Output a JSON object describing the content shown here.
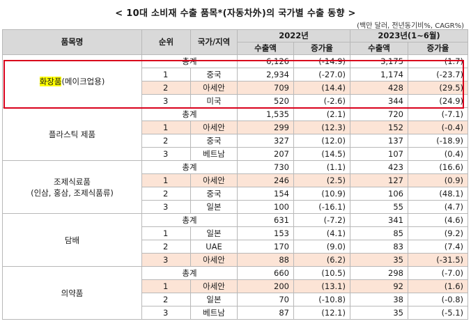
{
  "title": "< 10대 소비재 수출 품목*(자동차外)의 국가별 수출 동향 >",
  "unit": "(백만 달러, 전년동기비%, CAGR%)",
  "header": {
    "item": "품목명",
    "rank": "순위",
    "country": "국가/지역",
    "y2022": "2022년",
    "y2023": "2023년(1~6월)",
    "export": "수출액",
    "growth": "증가율"
  },
  "highlight_color": "#fce4d6",
  "box_color": "#d9001b",
  "groups": [
    {
      "name_main": "화장품",
      "name_sub": "(메이크업용)",
      "total": {
        "label": "총계",
        "e22": "6,126",
        "g22": "(-14.9)",
        "e23": "3,175",
        "g23": "(1.7)"
      },
      "rows": [
        {
          "rank": "1",
          "country": "중국",
          "e22": "2,934",
          "g22": "(-27.0)",
          "e23": "1,174",
          "g23": "(-23.7)",
          "hl": false
        },
        {
          "rank": "2",
          "country": "아세안",
          "e22": "709",
          "g22": "(14.4)",
          "e23": "428",
          "g23": "(29.5)",
          "hl": true
        },
        {
          "rank": "3",
          "country": "미국",
          "e22": "520",
          "g22": "(-2.6)",
          "e23": "344",
          "g23": "(24.9)",
          "hl": false
        }
      ]
    },
    {
      "name_main": "플라스틱 제품",
      "name_sub": "",
      "total": {
        "label": "총계",
        "e22": "1,535",
        "g22": "(2.1)",
        "e23": "720",
        "g23": "(-7.1)"
      },
      "rows": [
        {
          "rank": "1",
          "country": "아세안",
          "e22": "299",
          "g22": "(12.3)",
          "e23": "152",
          "g23": "(-0.4)",
          "hl": true
        },
        {
          "rank": "2",
          "country": "중국",
          "e22": "327",
          "g22": "(12.0)",
          "e23": "137",
          "g23": "(-18.9)",
          "hl": false
        },
        {
          "rank": "3",
          "country": "베트남",
          "e22": "207",
          "g22": "(14.5)",
          "e23": "107",
          "g23": "(0.4)",
          "hl": false
        }
      ]
    },
    {
      "name_main": "조제식료품",
      "name_sub": "(인삼, 홍삼, 조제식품류)",
      "total": {
        "label": "총계",
        "e22": "730",
        "g22": "(1.1)",
        "e23": "423",
        "g23": "(16.6)"
      },
      "rows": [
        {
          "rank": "1",
          "country": "아세안",
          "e22": "246",
          "g22": "(2.5)",
          "e23": "127",
          "g23": "(0.9)",
          "hl": true
        },
        {
          "rank": "2",
          "country": "중국",
          "e22": "154",
          "g22": "(10.9)",
          "e23": "106",
          "g23": "(48.1)",
          "hl": false
        },
        {
          "rank": "3",
          "country": "일본",
          "e22": "100",
          "g22": "(-16.1)",
          "e23": "55",
          "g23": "(4.7)",
          "hl": false
        }
      ]
    },
    {
      "name_main": "담배",
      "name_sub": "",
      "total": {
        "label": "총계",
        "e22": "631",
        "g22": "(-7.2)",
        "e23": "341",
        "g23": "(4.6)"
      },
      "rows": [
        {
          "rank": "1",
          "country": "일본",
          "e22": "153",
          "g22": "(4.1)",
          "e23": "85",
          "g23": "(9.2)",
          "hl": false
        },
        {
          "rank": "2",
          "country": "UAE",
          "e22": "170",
          "g22": "(9.0)",
          "e23": "83",
          "g23": "(7.4)",
          "hl": false
        },
        {
          "rank": "3",
          "country": "아세안",
          "e22": "88",
          "g22": "(6.2)",
          "e23": "35",
          "g23": "(-31.5)",
          "hl": true
        }
      ]
    },
    {
      "name_main": "의약품",
      "name_sub": "",
      "total": {
        "label": "총계",
        "e22": "660",
        "g22": "(10.5)",
        "e23": "298",
        "g23": "(-7.0)"
      },
      "rows": [
        {
          "rank": "1",
          "country": "아세안",
          "e22": "200",
          "g22": "(13.1)",
          "e23": "92",
          "g23": "(1.6)",
          "hl": true
        },
        {
          "rank": "2",
          "country": "일본",
          "e22": "70",
          "g22": "(-10.8)",
          "e23": "38",
          "g23": "(-0.8)",
          "hl": false
        },
        {
          "rank": "3",
          "country": "베트남",
          "e22": "87",
          "g22": "(12.1)",
          "e23": "35",
          "g23": "(-5.1)",
          "hl": false
        }
      ]
    }
  ]
}
